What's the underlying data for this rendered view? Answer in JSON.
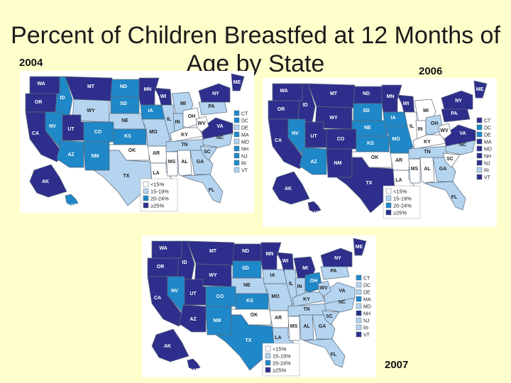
{
  "title": "Percent of Children Breastfed at 12 Months of Age by State",
  "colors": {
    "lt15": "#ffffff",
    "r15_19": "#b4d4f0",
    "r20_24": "#1e88c8",
    "ge25": "#2e2e8c",
    "background": "#ffffcc"
  },
  "legend": [
    "<15%",
    "15-19%",
    "20-24%",
    "≥25%"
  ],
  "ne_states": [
    "CT",
    "DC",
    "DE",
    "MA",
    "MD",
    "NH",
    "NJ",
    "RI",
    "VT"
  ],
  "maps": [
    {
      "year": "2004",
      "states": {
        "WA": "ge25",
        "OR": "ge25",
        "CA": "ge25",
        "ID": "r20_24",
        "NV": "r20_24",
        "MT": "ge25",
        "WY": "r15_19",
        "UT": "ge25",
        "AZ": "r20_24",
        "CO": "r20_24",
        "NM": "r20_24",
        "ND": "r20_24",
        "SD": "r20_24",
        "NE": "r15_19",
        "KS": "r20_24",
        "OK": "lt15",
        "TX": "r15_19",
        "MN": "ge25",
        "IA": "r20_24",
        "MO": "r15_19",
        "AR": "lt15",
        "LA": "lt15",
        "WI": "ge25",
        "IL": "r15_19",
        "MI": "r15_19",
        "IN": "r15_19",
        "OH": "lt15",
        "KY": "lt15",
        "TN": "r15_19",
        "MS": "lt15",
        "AL": "lt15",
        "GA": "r15_19",
        "FL": "r15_19",
        "SC": "r15_19",
        "NC": "r15_19",
        "VA": "ge25",
        "WV": "lt15",
        "PA": "r15_19",
        "NY": "ge25",
        "ME": "ge25",
        "AK": "ge25",
        "HI": "r20_24"
      },
      "ne": {
        "CT": "r20_24",
        "DC": "r20_24",
        "DE": "r15_19",
        "MA": "r20_24",
        "MD": "r15_19",
        "NH": "r20_24",
        "NJ": "r20_24",
        "RI": "r20_24",
        "VT": "r15_19"
      }
    },
    {
      "year": "2006",
      "states": {
        "WA": "ge25",
        "OR": "ge25",
        "CA": "ge25",
        "ID": "ge25",
        "NV": "r20_24",
        "MT": "ge25",
        "WY": "ge25",
        "UT": "ge25",
        "AZ": "r20_24",
        "CO": "ge25",
        "NM": "ge25",
        "ND": "ge25",
        "SD": "r20_24",
        "NE": "r20_24",
        "KS": "r20_24",
        "OK": "lt15",
        "TX": "ge25",
        "MN": "ge25",
        "IA": "r20_24",
        "MO": "r20_24",
        "AR": "lt15",
        "LA": "lt15",
        "WI": "ge25",
        "IL": "lt15",
        "MI": "lt15",
        "IN": "lt15",
        "OH": "r15_19",
        "KY": "lt15",
        "TN": "r15_19",
        "MS": "lt15",
        "AL": "lt15",
        "GA": "r15_19",
        "FL": "r15_19",
        "SC": "lt15",
        "NC": "r15_19",
        "VA": "ge25",
        "WV": "lt15",
        "PA": "ge25",
        "NY": "ge25",
        "ME": "ge25",
        "AK": "ge25",
        "HI": "ge25"
      },
      "ne": {
        "CT": "ge25",
        "DC": "r20_24",
        "DE": "r20_24",
        "MA": "ge25",
        "MD": "ge25",
        "NH": "ge25",
        "NJ": "ge25",
        "RI": "r15_19",
        "VT": "ge25"
      }
    },
    {
      "year": "2007",
      "states": {
        "WA": "ge25",
        "OR": "ge25",
        "CA": "ge25",
        "ID": "ge25",
        "NV": "r20_24",
        "MT": "ge25",
        "WY": "ge25",
        "UT": "ge25",
        "AZ": "ge25",
        "CO": "r20_24",
        "NM": "r20_24",
        "ND": "ge25",
        "SD": "r20_24",
        "NE": "r15_19",
        "KS": "r20_24",
        "OK": "lt15",
        "TX": "r20_24",
        "MN": "ge25",
        "IA": "r15_19",
        "MO": "r15_19",
        "AR": "lt15",
        "LA": "r15_19",
        "WI": "ge25",
        "IL": "r15_19",
        "MI": "ge25",
        "IN": "r15_19",
        "OH": "r20_24",
        "KY": "r15_19",
        "TN": "r15_19",
        "MS": "lt15",
        "AL": "r15_19",
        "GA": "r15_19",
        "FL": "r15_19",
        "SC": "r15_19",
        "NC": "r15_19",
        "VA": "r15_19",
        "WV": "r15_19",
        "PA": "r15_19",
        "NY": "ge25",
        "ME": "ge25",
        "AK": "ge25",
        "HI": "ge25"
      },
      "ne": {
        "CT": "r20_24",
        "DC": "r15_19",
        "DE": "r15_19",
        "MA": "r20_24",
        "MD": "r15_19",
        "NH": "ge25",
        "NJ": "r15_19",
        "RI": "r15_19",
        "VT": "ge25"
      }
    }
  ]
}
